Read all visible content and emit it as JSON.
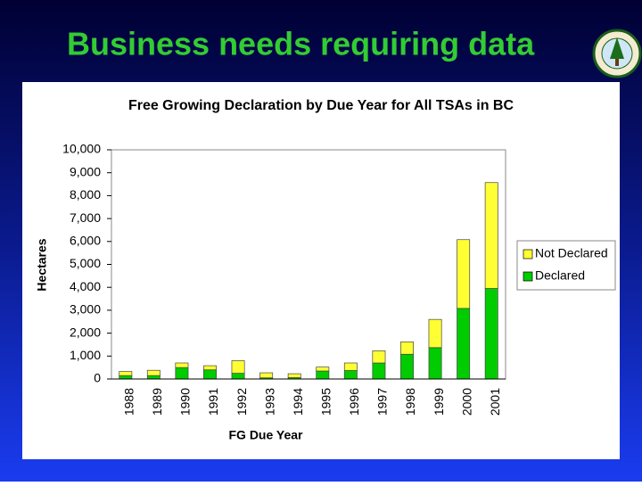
{
  "slide": {
    "title": "Business needs requiring data"
  },
  "chart_data": {
    "type": "stacked-bar",
    "title": "Free Growing Declaration by Due Year for All TSAs in BC",
    "x_label": "FG Due Year",
    "y_label": "Hectares",
    "categories": [
      "1988",
      "1989",
      "1990",
      "1991",
      "1992",
      "1993",
      "1994",
      "1995",
      "1996",
      "1997",
      "1998",
      "1999",
      "2000",
      "2001"
    ],
    "series": [
      {
        "name": "Declared",
        "color": "#00cc00",
        "values": [
          150,
          150,
          500,
          400,
          250,
          50,
          60,
          350,
          370,
          700,
          1080,
          1370,
          3080,
          3950
        ]
      },
      {
        "name": "Not Declared",
        "color": "#ffff33",
        "values": [
          180,
          230,
          200,
          180,
          550,
          220,
          170,
          170,
          330,
          530,
          540,
          1230,
          3000,
          4620
        ]
      }
    ],
    "ylim": [
      0,
      10000
    ],
    "yticks": [
      0,
      {
        "value": 1000,
        "label": "1,000"
      },
      {
        "value": 2000,
        "label": "2,000"
      },
      {
        "value": 3000,
        "label": "3,000"
      },
      {
        "value": 4000,
        "label": "4,000"
      },
      {
        "value": 5000,
        "label": "5,000"
      },
      {
        "value": 6000,
        "label": "6,000"
      },
      {
        "value": 7000,
        "label": "7,000"
      },
      {
        "value": 8000,
        "label": "8,000"
      },
      {
        "value": 9000,
        "label": "9,000"
      },
      {
        "value": 10000,
        "label": "10,000"
      }
    ],
    "legend": "right"
  }
}
